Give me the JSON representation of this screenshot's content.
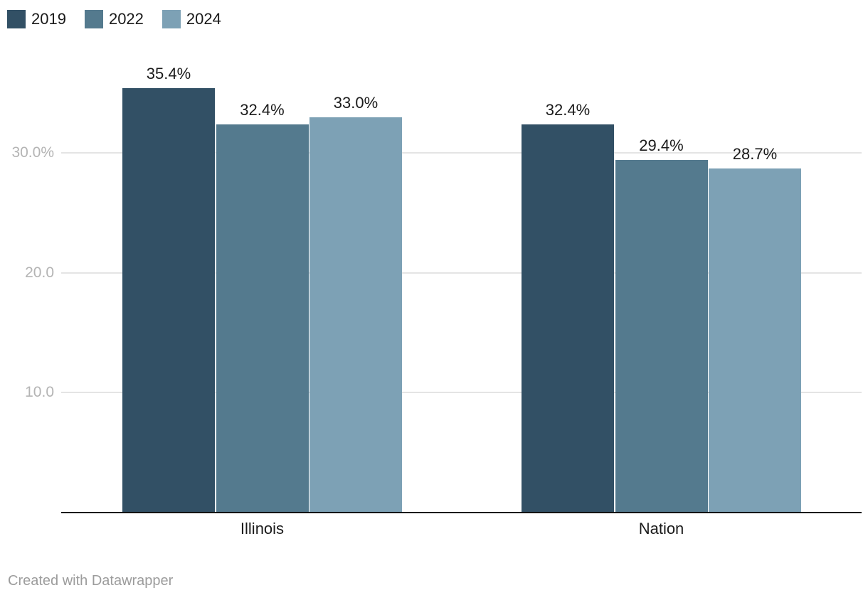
{
  "chart_data": {
    "type": "bar",
    "title": "",
    "categories": [
      "Illinois",
      "Nation"
    ],
    "series": [
      {
        "name": "2019",
        "color": "#325065",
        "values": [
          35.4,
          32.4
        ],
        "value_labels": [
          "35.4%",
          "32.4%"
        ]
      },
      {
        "name": "2022",
        "color": "#547a8e",
        "values": [
          32.4,
          29.4
        ],
        "value_labels": [
          "32.4%",
          "29.4%"
        ]
      },
      {
        "name": "2024",
        "color": "#7da1b5",
        "values": [
          33.0,
          28.7
        ],
        "value_labels": [
          "33.0%",
          "28.7%"
        ]
      }
    ],
    "y_axis": {
      "range": [
        0,
        37.5
      ],
      "ticks": [
        {
          "value": 10,
          "label": "10.0"
        },
        {
          "value": 20,
          "label": "20.0"
        },
        {
          "value": 30,
          "label": "30.0%"
        }
      ],
      "grid": true
    },
    "xlabel": "",
    "ylabel": "",
    "legend_position": "top-left",
    "value_label_format": "percent-one-decimal"
  },
  "legend": {
    "items": [
      {
        "label": "2019",
        "color": "#325065"
      },
      {
        "label": "2022",
        "color": "#547a8e"
      },
      {
        "label": "2024",
        "color": "#7da1b5"
      }
    ]
  },
  "footer": {
    "credit": "Created with Datawrapper"
  },
  "colors": {
    "background": "#ffffff",
    "axis_line": "#131313",
    "gridline": "#e4e4e4",
    "tick_label_text": "#b4b4b4",
    "label_text": "#1a1a1a",
    "footer_text": "#9c9c9c"
  }
}
